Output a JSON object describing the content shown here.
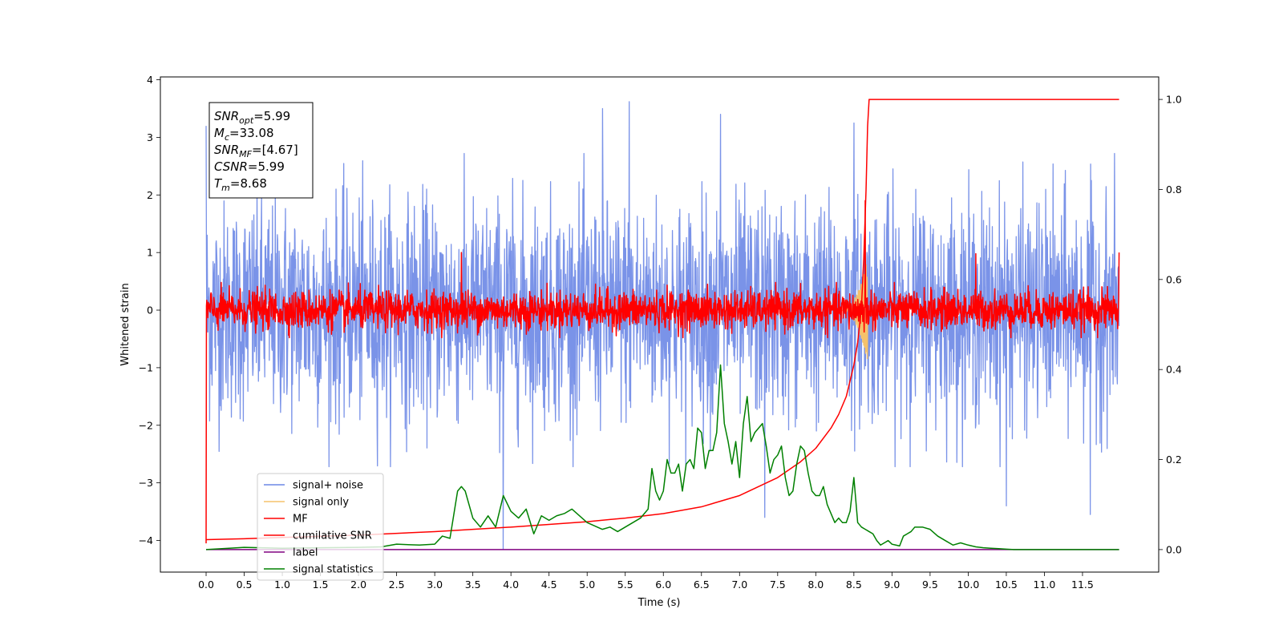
{
  "chart_data": {
    "type": "line",
    "xlabel": "Time (s)",
    "ylabel": "Whitened strain",
    "xlim": [
      -0.6,
      12.5
    ],
    "ylim": [
      -4.55,
      4.05
    ],
    "y2lim": [
      -0.05,
      1.05
    ],
    "x_ticks": [
      0.0,
      0.5,
      1.0,
      1.5,
      2.0,
      2.5,
      3.0,
      3.5,
      4.0,
      4.5,
      5.0,
      5.5,
      6.0,
      6.5,
      7.0,
      7.5,
      8.0,
      8.5,
      9.0,
      9.5,
      10.0,
      10.5,
      11.0,
      11.5
    ],
    "x_tick_labels": [
      "0.0",
      "0.5",
      "1.0",
      "1.5",
      "2.0",
      "2.5",
      "3.0",
      "3.5",
      "4.0",
      "4.5",
      "5.0",
      "5.5",
      "6.0",
      "6.5",
      "7.0",
      "7.5",
      "8.0",
      "8.5",
      "9.0",
      "9.5",
      "10.0",
      "10.5",
      "11.0",
      "11.5"
    ],
    "y_ticks": [
      4,
      3,
      2,
      1,
      0,
      -1,
      -2,
      -3,
      -4
    ],
    "y_tick_labels": [
      "4",
      "3",
      "2",
      "1",
      "0",
      "−1",
      "−2",
      "−3",
      "−4"
    ],
    "y2_ticks": [
      1.0,
      0.8,
      0.6,
      0.4,
      0.2,
      0.0
    ],
    "y2_tick_labels": [
      "1.0",
      "0.8",
      "0.6",
      "0.4",
      "0.2",
      "0.0"
    ],
    "legend_position": "lower-left",
    "colors": {
      "signal_noise": "#6b87e6",
      "signal_only": "#f5c26b",
      "mf": "#ff0000",
      "cumulative_snr": "#ff0000",
      "label": "#800080",
      "signal_statistics": "#008000"
    },
    "series": [
      {
        "name": "signal+ noise",
        "axis": "left",
        "style": "noise",
        "x_range": [
          0.0,
          11.98
        ],
        "center": 0.0,
        "envelope": 1.7,
        "peaks": [
          [
            0.0,
            3.2
          ],
          [
            5.2,
            3.5
          ],
          [
            5.55,
            3.62
          ],
          [
            6.75,
            3.4
          ],
          [
            8.5,
            3.25
          ],
          [
            3.9,
            -4.15
          ],
          [
            7.33,
            -3.6
          ],
          [
            11.6,
            -3.55
          ],
          [
            10.5,
            -3.4
          ]
        ]
      },
      {
        "name": "signal only",
        "axis": "left",
        "style": "chirp",
        "x_range": [
          8.3,
          8.68
        ],
        "center": 0.0,
        "peak_amplitude": 0.9
      },
      {
        "name": "MF",
        "axis": "left",
        "style": "noise",
        "x_range": [
          0.0,
          11.98
        ],
        "center": 0.0,
        "envelope": 0.3,
        "peaks": [
          [
            0.0,
            1.0
          ],
          [
            0.0,
            -4.05
          ],
          [
            3.35,
            1.0
          ],
          [
            8.65,
            1.9
          ],
          [
            10.1,
            0.98
          ],
          [
            11.98,
            1.0
          ]
        ]
      },
      {
        "name": "cumilative SNR",
        "axis": "right",
        "x": [
          0.0,
          0.5,
          1.0,
          2.0,
          3.0,
          4.0,
          5.0,
          5.5,
          6.0,
          6.5,
          7.0,
          7.5,
          7.8,
          8.0,
          8.2,
          8.3,
          8.4,
          8.5,
          8.55,
          8.6,
          8.63,
          8.66,
          8.68,
          8.7,
          11.98
        ],
        "values": [
          0.022,
          0.024,
          0.027,
          0.032,
          0.04,
          0.05,
          0.062,
          0.07,
          0.08,
          0.095,
          0.12,
          0.16,
          0.195,
          0.225,
          0.27,
          0.3,
          0.34,
          0.41,
          0.46,
          0.54,
          0.65,
          0.8,
          0.94,
          1.0,
          1.0
        ]
      },
      {
        "name": "label",
        "axis": "right",
        "x": [
          0.0,
          11.98
        ],
        "values": [
          0.0,
          0.0
        ]
      },
      {
        "name": "signal statistics",
        "axis": "right",
        "x": [
          0.0,
          0.3,
          0.5,
          1.0,
          1.5,
          2.0,
          2.3,
          2.5,
          2.8,
          3.0,
          3.1,
          3.2,
          3.3,
          3.35,
          3.4,
          3.5,
          3.6,
          3.7,
          3.8,
          3.9,
          4.0,
          4.1,
          4.2,
          4.3,
          4.4,
          4.5,
          4.6,
          4.7,
          4.8,
          5.0,
          5.2,
          5.3,
          5.4,
          5.5,
          5.6,
          5.7,
          5.8,
          5.85,
          5.9,
          5.95,
          6.0,
          6.05,
          6.1,
          6.15,
          6.2,
          6.25,
          6.3,
          6.35,
          6.4,
          6.45,
          6.5,
          6.55,
          6.6,
          6.65,
          6.7,
          6.75,
          6.8,
          6.85,
          6.9,
          6.95,
          7.0,
          7.05,
          7.1,
          7.15,
          7.2,
          7.25,
          7.3,
          7.35,
          7.4,
          7.45,
          7.5,
          7.55,
          7.6,
          7.65,
          7.7,
          7.75,
          7.8,
          7.85,
          7.9,
          7.95,
          8.0,
          8.05,
          8.1,
          8.15,
          8.2,
          8.25,
          8.3,
          8.35,
          8.4,
          8.45,
          8.5,
          8.55,
          8.6,
          8.65,
          8.7,
          8.75,
          8.8,
          8.85,
          8.9,
          8.95,
          9.0,
          9.05,
          9.1,
          9.15,
          9.2,
          9.25,
          9.3,
          9.4,
          9.5,
          9.6,
          9.7,
          9.8,
          9.9,
          10.0,
          10.1,
          10.2,
          10.3,
          10.4,
          10.5,
          10.6,
          10.8,
          11.0,
          11.5,
          11.98
        ],
        "values": [
          0.0,
          0.003,
          0.005,
          0.003,
          0.004,
          0.005,
          0.006,
          0.012,
          0.01,
          0.012,
          0.03,
          0.025,
          0.13,
          0.14,
          0.13,
          0.07,
          0.05,
          0.075,
          0.05,
          0.12,
          0.085,
          0.07,
          0.09,
          0.035,
          0.075,
          0.065,
          0.075,
          0.08,
          0.09,
          0.06,
          0.045,
          0.05,
          0.04,
          0.05,
          0.06,
          0.07,
          0.09,
          0.18,
          0.13,
          0.11,
          0.13,
          0.2,
          0.17,
          0.17,
          0.19,
          0.13,
          0.19,
          0.2,
          0.18,
          0.27,
          0.26,
          0.18,
          0.22,
          0.22,
          0.26,
          0.41,
          0.28,
          0.24,
          0.19,
          0.24,
          0.16,
          0.28,
          0.34,
          0.24,
          0.26,
          0.27,
          0.28,
          0.23,
          0.17,
          0.2,
          0.21,
          0.23,
          0.16,
          0.12,
          0.13,
          0.19,
          0.23,
          0.22,
          0.17,
          0.13,
          0.12,
          0.12,
          0.14,
          0.1,
          0.08,
          0.06,
          0.07,
          0.06,
          0.06,
          0.085,
          0.16,
          0.06,
          0.05,
          0.045,
          0.04,
          0.035,
          0.02,
          0.01,
          0.015,
          0.02,
          0.012,
          0.01,
          0.008,
          0.03,
          0.035,
          0.04,
          0.05,
          0.05,
          0.045,
          0.03,
          0.02,
          0.01,
          0.015,
          0.01,
          0.006,
          0.004,
          0.003,
          0.002,
          0.001,
          0.0,
          0.0,
          0.0,
          0.0,
          0.0
        ]
      }
    ]
  },
  "annotation": {
    "lines": [
      {
        "base": "SNR",
        "sub": "opt",
        "rest": "=5.99"
      },
      {
        "base": "M",
        "sub": "c",
        "rest": "=33.08"
      },
      {
        "base": "SNR",
        "sub": "MF",
        "rest": "=[4.67]"
      },
      {
        "base": "CSNR",
        "sub": "",
        "rest": "=5.99"
      },
      {
        "base": "T",
        "sub": "m",
        "rest": "=8.68"
      }
    ]
  }
}
